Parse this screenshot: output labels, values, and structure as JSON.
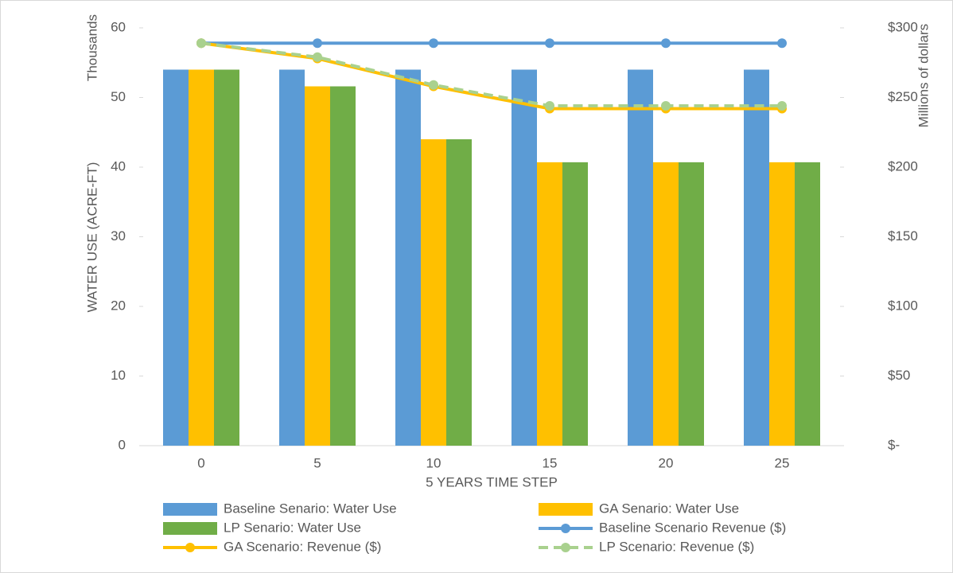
{
  "chart_data": {
    "type": "bar",
    "y_label": "WATER USE (ACRE-FT)",
    "y_unit_note": "Thousands",
    "y2_label": "Millions of dollars",
    "x_label": "5 YEARS TIME STEP",
    "categories": [
      "0",
      "5",
      "10",
      "15",
      "20",
      "25"
    ],
    "ylim": [
      0,
      60
    ],
    "yticks": [
      0,
      10,
      20,
      30,
      40,
      50,
      60
    ],
    "y2lim": [
      0,
      300
    ],
    "y2ticks": [
      {
        "value": 0,
        "label": "$-"
      },
      {
        "value": 50,
        "label": "$50"
      },
      {
        "value": 100,
        "label": "$100"
      },
      {
        "value": 150,
        "label": "$150"
      },
      {
        "value": 200,
        "label": "$200"
      },
      {
        "value": 250,
        "label": "$250"
      },
      {
        "value": 300,
        "label": "$300"
      }
    ],
    "series": [
      {
        "name": "Baseline Senario: Water Use",
        "type": "bar",
        "color": "#5b9bd5",
        "values": [
          54,
          54,
          54,
          54,
          54,
          54
        ]
      },
      {
        "name": "GA Senario: Water Use",
        "type": "bar",
        "color": "#ffc000",
        "values": [
          54,
          51.6,
          44,
          40.7,
          40.7,
          40.7
        ]
      },
      {
        "name": "LP Senario: Water Use",
        "type": "bar",
        "color": "#70ad47",
        "values": [
          54,
          51.6,
          44,
          40.7,
          40.7,
          40.7
        ]
      },
      {
        "name": "Baseline Scenario  Revenue ($)",
        "type": "line",
        "axis": "y2",
        "color": "#5b9bd5",
        "dashed": false,
        "values": [
          289,
          289,
          289,
          289,
          289,
          289
        ]
      },
      {
        "name": "GA Scenario:  Revenue ($)",
        "type": "line",
        "axis": "y2",
        "color": "#ffc000",
        "dashed": false,
        "values": [
          289,
          278,
          258,
          242,
          242,
          242
        ]
      },
      {
        "name": "LP Scenario: Revenue ($)",
        "type": "line",
        "axis": "y2",
        "color": "#a9d18e",
        "dashed": true,
        "values": [
          289,
          279,
          259,
          244,
          244,
          244
        ]
      }
    ]
  }
}
